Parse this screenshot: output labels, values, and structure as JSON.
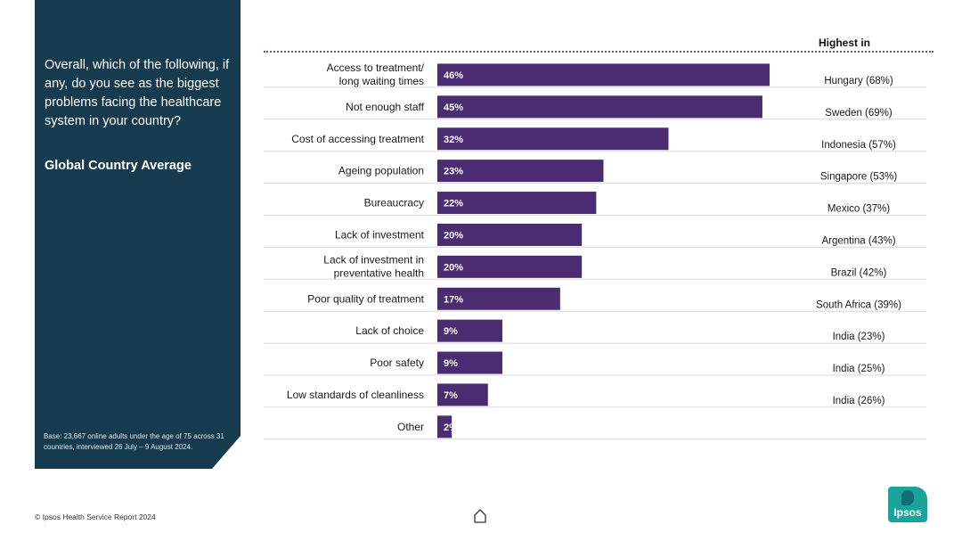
{
  "panel": {
    "question": "Overall, which of the following, if any, do you see as the biggest problems facing the healthcare system in your country?",
    "subtitle": "Global Country Average",
    "base_note": "Base: 23,667 online adults under the age of 75 across 31 countries, interviewed 26 July – 9 August 2024."
  },
  "footer": {
    "copyright": "© Ipsos Health Service Report 2024",
    "logo_text": "Ipsos"
  },
  "colors": {
    "bar": "#4b2c72",
    "panel": "#163b4e",
    "row_line": "#d9d9d9",
    "accent": "#19a39c"
  },
  "chart_data": {
    "type": "bar",
    "orientation": "horizontal",
    "title": "Global Country Average",
    "highest_header": "Highest in",
    "xlim": [
      0,
      46
    ],
    "categories": [
      "Access to treatment/\nlong waiting times",
      "Not enough staff",
      "Cost of accessing treatment",
      "Ageing population",
      "Bureaucracy",
      "Lack of investment",
      "Lack of investment in\npreventative health",
      "Poor quality of treatment",
      "Lack of choice",
      "Poor safety",
      "Low standards of cleanliness",
      "Other"
    ],
    "values": [
      46,
      45,
      32,
      23,
      22,
      20,
      20,
      17,
      9,
      9,
      7,
      2
    ],
    "value_labels": [
      "46%",
      "45%",
      "32%",
      "23%",
      "22%",
      "20%",
      "20%",
      "17%",
      "9%",
      "9%",
      "7%",
      "2%"
    ],
    "highest_in": [
      "Hungary (68%)",
      "Sweden (69%)",
      "Indonesia (57%)",
      "Singapore (53%)",
      "Mexico (37%)",
      "Argentina (43%)",
      "Brazil (42%)",
      "South Africa (39%)",
      "India (23%)",
      "India (25%)",
      "India (26%)",
      ""
    ]
  }
}
